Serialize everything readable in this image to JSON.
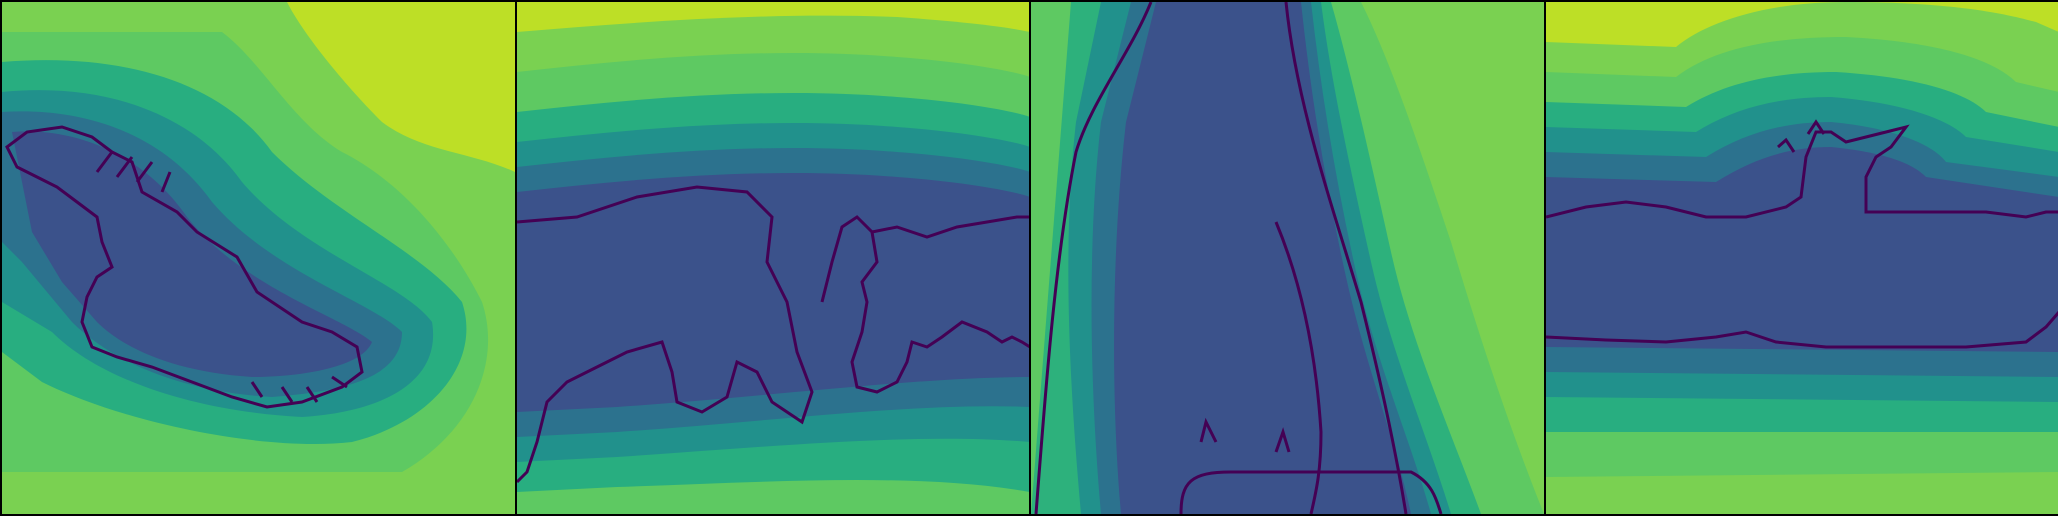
{
  "colormap": {
    "name": "viridis",
    "bands": [
      "#440154",
      "#3b528b",
      "#2c728e",
      "#21918c",
      "#28ae80",
      "#5ec962",
      "#addc30"
    ],
    "background_far": "#bddf26",
    "background_mid": "#7ad151",
    "contour_line": "#440154"
  },
  "panels": [
    {
      "subject": "bird-with-spread-wings"
    },
    {
      "subject": "two-quadrupeds-walking"
    },
    {
      "subject": "tall-stalk-with-leaf"
    },
    {
      "subject": "long-bodied-animal"
    }
  ]
}
